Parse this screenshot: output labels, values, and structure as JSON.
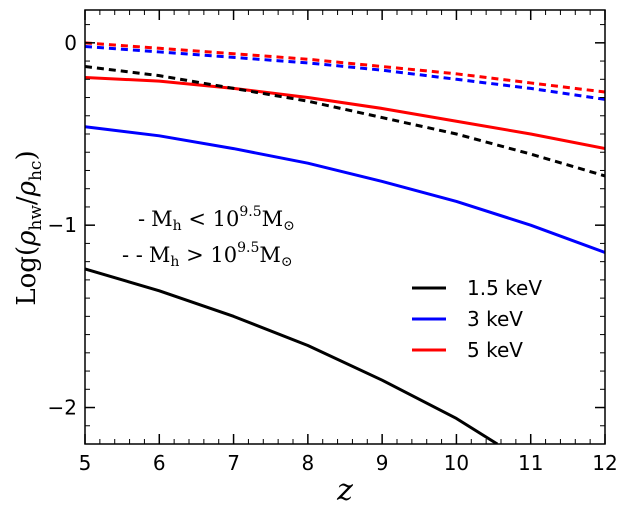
{
  "chart_data": {
    "type": "line",
    "title": "",
    "xlabel": "z",
    "ylabel_main": "Log(",
    "ylabel_rho": "ρ",
    "ylabel_sub1": "hw",
    "ylabel_slash": "/",
    "ylabel_sub2": "hc",
    "ylabel_close": ")",
    "xlim": [
      5,
      12
    ],
    "ylim": [
      -2.2,
      0.18
    ],
    "xticks": [
      5,
      6,
      7,
      8,
      9,
      10,
      11,
      12
    ],
    "xtick_labels": [
      "5",
      "6",
      "7",
      "8",
      "9",
      "10",
      "11",
      "12"
    ],
    "yticks": [
      0,
      -1,
      -2
    ],
    "ytick_labels": [
      "0",
      "−1",
      "−2"
    ],
    "x": [
      5,
      6,
      7,
      8,
      9,
      10,
      11,
      12
    ],
    "series": [
      {
        "name": "1.5 keV",
        "group": "Mh < 10^9.5 Msun",
        "style": "solid",
        "color": "#000000",
        "x": [
          5,
          6,
          7,
          8,
          9,
          10,
          10.55
        ],
        "values": [
          -1.24,
          -1.36,
          -1.5,
          -1.66,
          -1.85,
          -2.06,
          -2.2
        ]
      },
      {
        "name": "3 keV",
        "group": "Mh < 10^9.5 Msun",
        "style": "solid",
        "color": "#0000ff",
        "x": [
          5,
          6,
          7,
          8,
          9,
          10,
          11,
          12
        ],
        "values": [
          -0.46,
          -0.51,
          -0.58,
          -0.66,
          -0.76,
          -0.87,
          -1.0,
          -1.15
        ]
      },
      {
        "name": "5 keV",
        "group": "Mh < 10^9.5 Msun",
        "style": "solid",
        "color": "#ff0000",
        "x": [
          5,
          6,
          7,
          8,
          9,
          10,
          11,
          12
        ],
        "values": [
          -0.19,
          -0.21,
          -0.25,
          -0.3,
          -0.36,
          -0.43,
          -0.5,
          -0.58
        ]
      },
      {
        "name": "1.5 keV",
        "group": "Mh > 10^9.5 Msun",
        "style": "dashed",
        "color": "#000000",
        "x": [
          5,
          6,
          7,
          8,
          9,
          10,
          11,
          12
        ],
        "values": [
          -0.13,
          -0.18,
          -0.25,
          -0.32,
          -0.41,
          -0.5,
          -0.61,
          -0.73
        ]
      },
      {
        "name": "3 keV",
        "group": "Mh > 10^9.5 Msun",
        "style": "dashed",
        "color": "#0000ff",
        "x": [
          5,
          6,
          7,
          8,
          9,
          10,
          11,
          12
        ],
        "values": [
          -0.02,
          -0.05,
          -0.08,
          -0.11,
          -0.15,
          -0.2,
          -0.25,
          -0.31
        ]
      },
      {
        "name": "5 keV",
        "group": "Mh > 10^9.5 Msun",
        "style": "dashed",
        "color": "#ff0000",
        "x": [
          5,
          6,
          7,
          8,
          9,
          10,
          11,
          12
        ],
        "values": [
          0.0,
          -0.03,
          -0.06,
          -0.09,
          -0.13,
          -0.17,
          -0.22,
          -0.27
        ]
      }
    ],
    "legend": {
      "position": "lower-right",
      "entries": [
        {
          "label": "1.5 keV",
          "color": "#000000"
        },
        {
          "label": "3 keV",
          "color": "#0000ff"
        },
        {
          "label": "5 keV",
          "color": "#ff0000"
        }
      ]
    },
    "annotations": [
      {
        "marker": "-",
        "text": "M",
        "sub": "h",
        "relation": " < ",
        "base": "10",
        "exp": "9.5",
        "text2": "M",
        "sub2": "⊙"
      },
      {
        "marker": "- -",
        "text": "M",
        "sub": "h",
        "relation": " > ",
        "base": "10",
        "exp": "9.5",
        "text2": "M",
        "sub2": "⊙"
      }
    ]
  }
}
